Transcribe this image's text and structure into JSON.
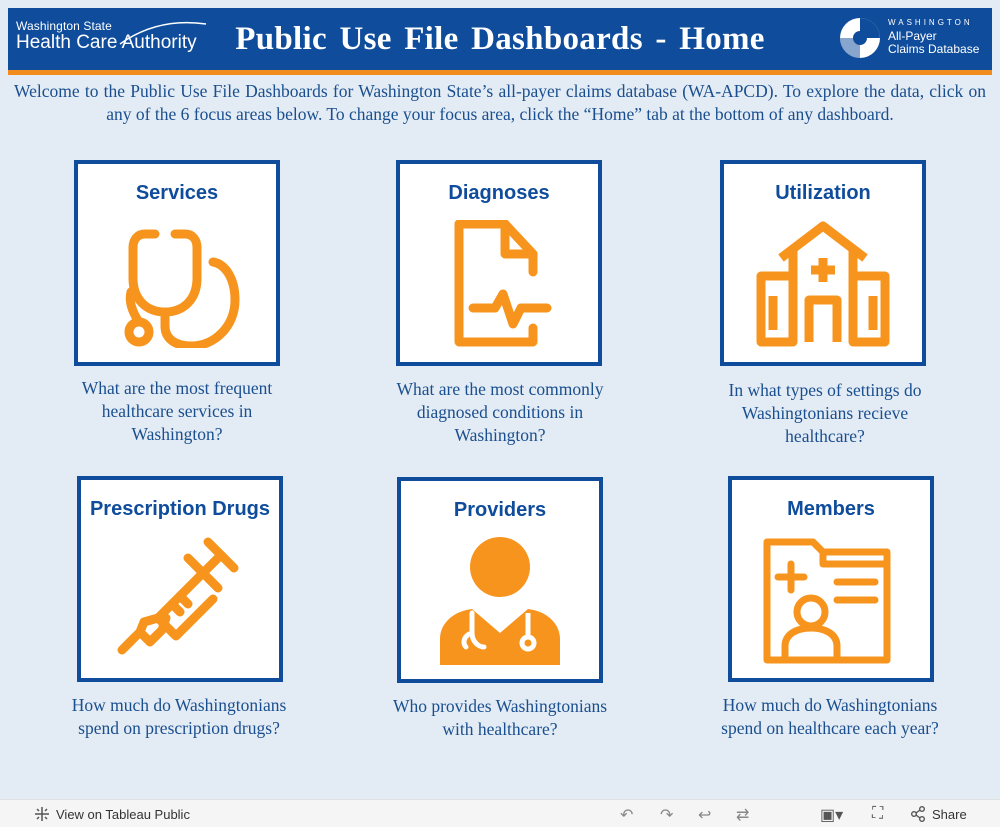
{
  "header": {
    "hca_line1": "Washington State",
    "hca_line2": "Health Care Authority",
    "title": "Public Use File Dashboards - Home",
    "apcd_word": "WASHINGTON",
    "apcd_line1": "All-Payer",
    "apcd_line2": "Claims Database"
  },
  "intro": "Welcome to the Public Use File Dashboards for Washington State’s all-payer claims database (WA-APCD). To explore the data, click on any of the 6 focus areas below. To change your focus area, click the “Home” tab at the bottom of any dashboard.",
  "cards": [
    {
      "title": "Services",
      "icon": "stethoscope-icon",
      "question": "What are the most frequent healthcare services in Washington?"
    },
    {
      "title": "Diagnoses",
      "icon": "medical-document-icon",
      "question": "What are the most commonly diagnosed conditions in Washington?"
    },
    {
      "title": "Utilization",
      "icon": "hospital-icon",
      "question": "In what types of settings do Washingtonians recieve healthcare?"
    },
    {
      "title": "Prescription Drugs",
      "icon": "syringe-icon",
      "question": "How much do Washingtonians spend on prescription drugs?"
    },
    {
      "title": "Providers",
      "icon": "doctor-icon",
      "question": "Who provides Washingtonians with healthcare?"
    },
    {
      "title": "Members",
      "icon": "member-folder-icon",
      "question": "How much do Washingtonians spend on healthcare each year?"
    }
  ],
  "footer": {
    "view_label": "View on Tableau Public",
    "share_label": "Share"
  },
  "colors": {
    "brand_blue": "#0f4c9c",
    "accent_orange": "#f28c1e",
    "background": "#e3ebf4"
  }
}
